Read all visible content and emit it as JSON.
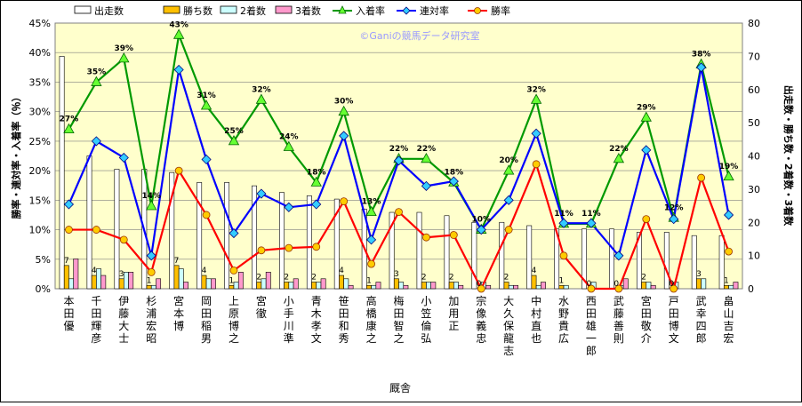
{
  "chart_data": {
    "type": "bar",
    "categories": [
      "本田　優",
      "千田　輝彦",
      "伊藤　大士",
      "杉浦　宏昭",
      "宮本　博",
      "岡田　稲男",
      "上原　博之",
      "宮　徹",
      "小手川　準",
      "青木　孝文",
      "笹田　和秀",
      "高橋　康之",
      "梅田　智之",
      "小笠　倫弘",
      "加用　正",
      "宗像　義忠",
      "大久保　龍志",
      "中村　直也",
      "水野　貴広",
      "西田　雄一郎",
      "武藤　善則",
      "宮田　敬介",
      "戸田　博文",
      "武　幸四郎",
      "畠山　吉宏"
    ],
    "xlabel": "厩舎",
    "ylabel_left": "勝率・連対率・入着率（％）",
    "ylabel_right": "出走数・勝ち数・2着数・3着数",
    "ylim_left": [
      0,
      45
    ],
    "ylim_right": [
      0,
      80
    ],
    "yticks_left": [
      "0%",
      "5%",
      "10%",
      "15%",
      "20%",
      "25%",
      "30%",
      "35%",
      "40%",
      "45%"
    ],
    "yticks_right": [
      "0",
      "10",
      "20",
      "30",
      "40",
      "50",
      "60",
      "70",
      "80"
    ],
    "watermark": "©Ganiの競馬データ研究室",
    "legend": [
      "出走数",
      "勝ち数",
      "2着数",
      "3着数",
      "入着率",
      "連対率",
      "勝率"
    ],
    "colors": {
      "starts": "#ffffff",
      "wins": "#ffc000",
      "second": "#ccffff",
      "third": "#ff99cc",
      "place": "#009900",
      "rentai": "#0000ff",
      "win": "#ff0000",
      "plot_bg": "#ffffcc"
    },
    "series": [
      {
        "name": "出走数",
        "axis": "right",
        "values": [
          70,
          40,
          36,
          36,
          35,
          32,
          32,
          31,
          29,
          28,
          27,
          24,
          23,
          23,
          22,
          20,
          20,
          19,
          18,
          18,
          18,
          17,
          17,
          16,
          16
        ]
      },
      {
        "name": "勝ち数",
        "axis": "right",
        "values": [
          7,
          4,
          3,
          1,
          7,
          4,
          1,
          2,
          2,
          2,
          4,
          1,
          3,
          2,
          2,
          0,
          2,
          4,
          1,
          0,
          0,
          2,
          0,
          3,
          1
        ]
      },
      {
        "name": "2着数",
        "axis": "right",
        "values": [
          3,
          6,
          5,
          1,
          6,
          3,
          2,
          3,
          2,
          2,
          3,
          1,
          2,
          2,
          2,
          2,
          1,
          1,
          1,
          2,
          1,
          2,
          2,
          3,
          1
        ]
      },
      {
        "name": "3着数",
        "axis": "right",
        "values": [
          9,
          4,
          5,
          3,
          2,
          3,
          5,
          5,
          3,
          3,
          1,
          2,
          1,
          2,
          1,
          1,
          1,
          2,
          0,
          0,
          3,
          1,
          0,
          0,
          2
        ]
      },
      {
        "name": "入着率",
        "axis": "left",
        "values": [
          27,
          35,
          39,
          14,
          43,
          31,
          25,
          32,
          24,
          18,
          30,
          13,
          22,
          22,
          18,
          10,
          20,
          32,
          11,
          11,
          22,
          29,
          12,
          38,
          19
        ]
      },
      {
        "name": "連対率",
        "axis": "left",
        "values": [
          14.3,
          25,
          22.2,
          5.6,
          37.1,
          21.9,
          9.4,
          16.1,
          13.8,
          14.3,
          25.9,
          8.3,
          21.7,
          17.4,
          18.2,
          10,
          15,
          26.3,
          11.1,
          11.1,
          5.6,
          23.5,
          11.8,
          37.5,
          12.5
        ]
      },
      {
        "name": "勝率",
        "axis": "left",
        "values": [
          10,
          10,
          8.3,
          2.8,
          20,
          12.5,
          3.1,
          6.5,
          6.9,
          7.1,
          14.8,
          4.2,
          13,
          8.7,
          9.1,
          0,
          10,
          21.1,
          5.6,
          0,
          0,
          11.8,
          0,
          18.8,
          6.3
        ]
      }
    ],
    "place_labels": [
      "27%",
      "35%",
      "39%",
      "14%",
      "43%",
      "31%",
      "25%",
      "32%",
      "24%",
      "18%",
      "30%",
      "13%",
      "22%",
      "22%",
      "18%",
      "10%",
      "20%",
      "32%",
      "11%",
      "11%",
      "22%",
      "29%",
      "12%",
      "38%",
      "19%"
    ],
    "win_labels": [
      "7",
      "4",
      "3",
      "1",
      "7",
      "4",
      "1",
      "2",
      "2",
      "2",
      "4",
      "1",
      "3",
      "2",
      "2",
      "0",
      "2",
      "4",
      "1",
      "0",
      "0",
      "2",
      "0",
      "3",
      "1"
    ]
  }
}
